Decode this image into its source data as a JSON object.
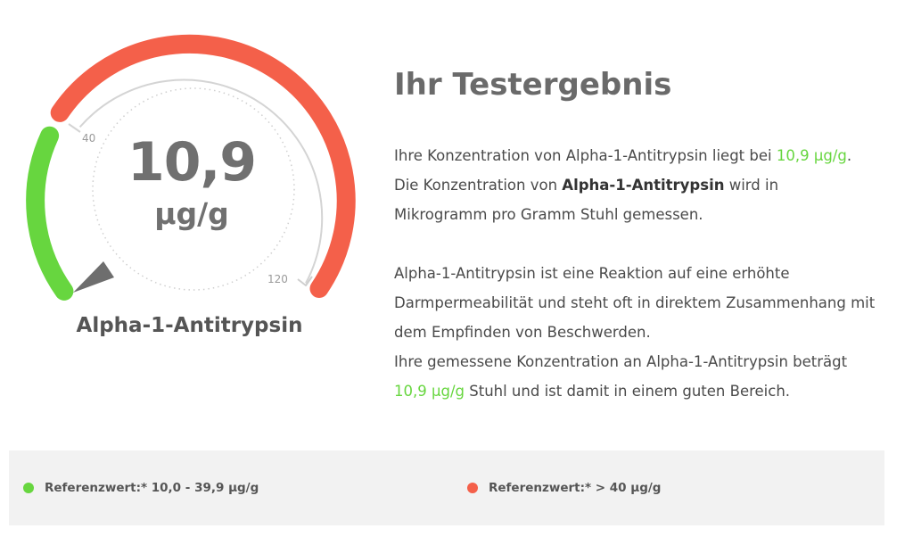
{
  "gauge": {
    "value": "10,9",
    "unit": "µg/g",
    "label": "Alpha-1-Antitrypsin",
    "tick_low": "40",
    "tick_high": "120",
    "reading": 10.9,
    "colors": {
      "good": "#67d63f",
      "bad": "#f4604a",
      "needle": "#6e6e6e",
      "track": "#d4d4d4"
    }
  },
  "result": {
    "title": "Ihr Testergebnis",
    "p1_prefix": "Ihre Konzentration von Alpha-1-Antitrypsin liegt bei ",
    "p1_value": "10,9 µg/g",
    "p1_suffix": ".",
    "p2_prefix": "Die Konzentration von ",
    "p2_bold": "Alpha-1-Antitrypsin",
    "p2_suffix": " wird in Mikrogramm pro Gramm Stuhl gemessen.",
    "p3": "Alpha-1-Antitrypsin ist eine Reaktion auf eine erhöhte Darmpermeabilität und steht oft in direktem Zusammenhang mit dem Empfinden von Beschwerden.",
    "p4_prefix": "Ihre gemessene Konzentration an Alpha-1-Antitrypsin beträgt ",
    "p4_value": "10,9 µg/g",
    "p4_suffix": " Stuhl und ist damit in einem guten Bereich."
  },
  "legend": {
    "good": {
      "label": "Referenzwert:* 10,0 - 39,9 µg/g",
      "color": "#67d63f"
    },
    "bad": {
      "label": "Referenzwert:* > 40 µg/g",
      "color": "#f4604a"
    }
  }
}
